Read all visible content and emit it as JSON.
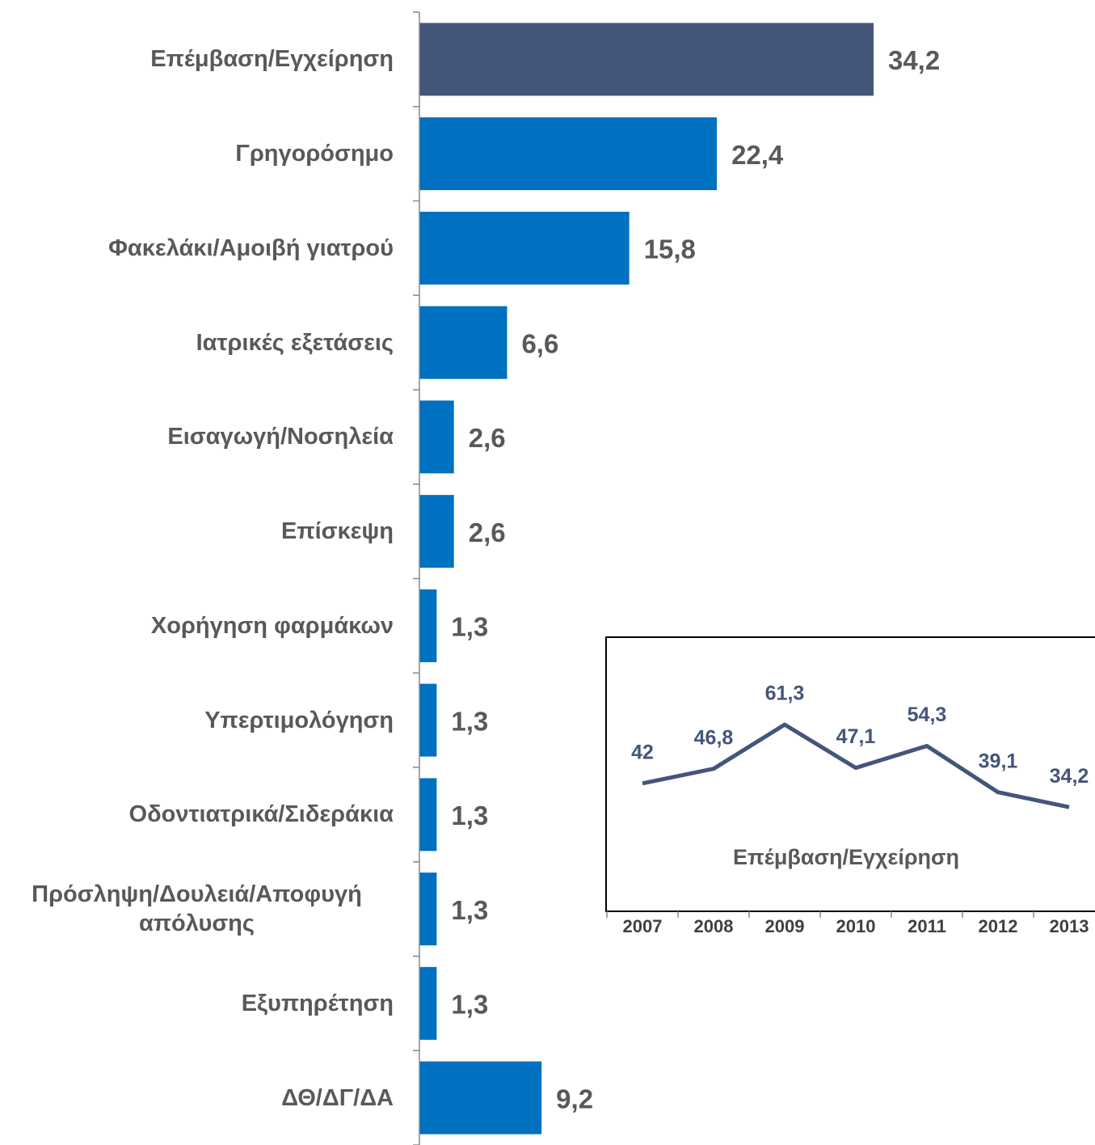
{
  "chart_data": [
    {
      "type": "bar",
      "orientation": "horizontal",
      "categories": [
        "Επέμβαση/Εγχείρηση",
        "Γρηγορόσημο",
        "Φακελάκι/Αμοιβή γιατρού",
        "Ιατρικές εξετάσεις",
        "Εισαγωγή/Νοσηλεία",
        "Επίσκεψη",
        "Χορήγηση φαρμάκων",
        "Υπερτιμολόγηση",
        "Οδοντιατρικά/Σιδεράκια",
        "Πρόσληψη/Δουλειά/Αποφυγή απόλυσης",
        "Εξυπηρέτηση",
        "ΔΘ/ΔΓ/ΔΑ"
      ],
      "values": [
        34.2,
        22.4,
        15.8,
        6.6,
        2.6,
        2.6,
        1.3,
        1.3,
        1.3,
        1.3,
        1.3,
        9.2
      ],
      "value_labels": [
        "34,2",
        "22,4",
        "15,8",
        "6,6",
        "2,6",
        "2,6",
        "1,3",
        "1,3",
        "1,3",
        "1,3",
        "1,3",
        "9,2"
      ],
      "colors": [
        "#44557a",
        "#0070c0",
        "#0070c0",
        "#0070c0",
        "#0070c0",
        "#0070c0",
        "#0070c0",
        "#0070c0",
        "#0070c0",
        "#0070c0",
        "#0070c0",
        "#0070c0"
      ],
      "xlim": [
        0,
        50
      ]
    },
    {
      "type": "line",
      "title": "Επέμβαση/Εγχείρηση",
      "categories": [
        "2007",
        "2008",
        "2009",
        "2010",
        "2011",
        "2012",
        "2013"
      ],
      "values": [
        42,
        46.8,
        61.3,
        47.1,
        54.3,
        39.1,
        34.2
      ],
      "value_labels": [
        "42",
        "46,8",
        "61,3",
        "47,1",
        "54,3",
        "39,1",
        "34,2"
      ],
      "color": "#44557a",
      "ylim": [
        0,
        90
      ]
    }
  ]
}
